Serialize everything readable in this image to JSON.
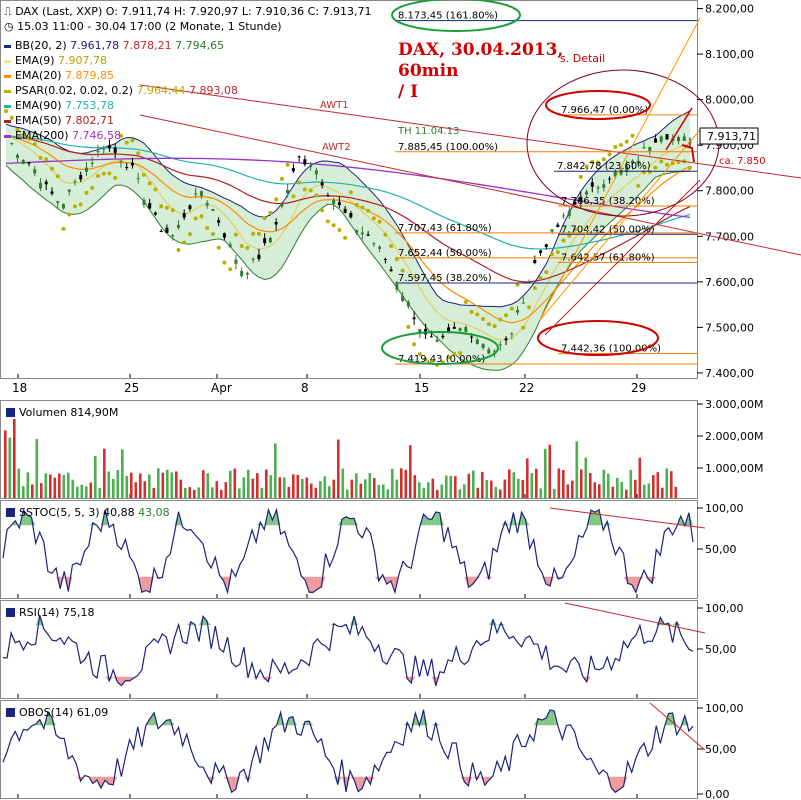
{
  "header": {
    "title": "DAX (Last, XXP)",
    "ohlc": "O: 7.911,74  H: 7.920,97  L: 7.910,36  C: 7.913,71",
    "range": "15.03 11:00 - 30.04 17:00 (2 Monate, 1 Stunde)"
  },
  "legend": [
    {
      "label": "BB(20, 2)",
      "values": "7.961,78",
      "v2": "7.878,21",
      "v3": "7.794,65",
      "color": "#1a237e"
    },
    {
      "label": "EMA(9)",
      "values": "7.907,78",
      "color": "#f0e68c"
    },
    {
      "label": "EMA(20)",
      "values": "7.879,85",
      "color": "#ff8c00"
    },
    {
      "label": "PSAR(0.02, 0.02, 0.2)",
      "values": "7.964,44",
      "v2": "7.893,08",
      "color": "#b8b000"
    },
    {
      "label": "EMA(90)",
      "values": "7.753,78",
      "color": "#20b2aa"
    },
    {
      "label": "EMA(50)",
      "values": "7.802,71",
      "color": "#b22222"
    },
    {
      "label": "EMA(200)",
      "values": "7.746,58",
      "color": "#9932cc"
    }
  ],
  "headline": [
    "DAX, 30.04.2013,",
    "60min",
    "/ I"
  ],
  "detail_label": "s. Detail",
  "annotations": {
    "awt1": "AWT1",
    "awt2": "AWT2",
    "th": "TH 11.04.13",
    "price_tag": "7.913,71",
    "ca_label": "ca. 7.850"
  },
  "chart_data": [
    {
      "type": "line",
      "name": "price",
      "x_ticks": [
        "18",
        "25",
        "Apr",
        "8",
        "15",
        "22",
        "29"
      ],
      "y_ticks": [
        "8.200,00",
        "8.100,00",
        "8.000,00",
        "7.900,00",
        "7.800,00",
        "7.700,00",
        "7.600,00",
        "7.500,00",
        "7.400,00"
      ],
      "ylim": [
        7380,
        8210
      ],
      "close": [
        7920,
        7880,
        7850,
        7800,
        7770,
        7820,
        7860,
        7900,
        7880,
        7850,
        7780,
        7720,
        7700,
        7760,
        7800,
        7750,
        7680,
        7620,
        7650,
        7700,
        7790,
        7870,
        7860,
        7800,
        7760,
        7720,
        7700,
        7660,
        7600,
        7540,
        7480,
        7460,
        7490,
        7500,
        7470,
        7450,
        7470,
        7560,
        7650,
        7700,
        7740,
        7780,
        7800,
        7830,
        7840,
        7860,
        7900,
        7930,
        7910,
        7913
      ],
      "fib_levels": [
        {
          "label": "8.173,45 (161.80%)",
          "value": 8173.45
        },
        {
          "label": "7.966,47 (0.00%)",
          "value": 7966.47
        },
        {
          "label": "7.885,45 (100.00%)",
          "value": 7885.45
        },
        {
          "label": "7.842,78 (23.60%)",
          "value": 7842.78
        },
        {
          "label": "7.766,35 (38.20%)",
          "value": 7766.35
        },
        {
          "label": "7.707,43 (61.80%)",
          "value": 7707.43
        },
        {
          "label": "7.704,42 (50.00%)",
          "value": 7704.42
        },
        {
          "label": "7.652,44 (50.00%)",
          "value": 7652.44
        },
        {
          "label": "7.642,57 (61.80%)",
          "value": 7642.57
        },
        {
          "label": "7.597,45 (38.20%)",
          "value": 7597.45
        },
        {
          "label": "7.442,36 (100.00%)",
          "value": 7442.36
        },
        {
          "label": "7.419,43 (0.00%)",
          "value": 7419.43
        }
      ]
    },
    {
      "type": "bar",
      "name": "Volumen",
      "title": "Volumen",
      "value": "814,90M",
      "y_ticks": [
        "3.000,00M",
        "2.000,00M",
        "1.000,00M"
      ]
    },
    {
      "type": "line",
      "name": "SSTOC",
      "title": "SSTOC(5, 5, 3)",
      "value": "40,88",
      "value2": "43,08",
      "y_ticks": [
        "100,00",
        "50,00"
      ]
    },
    {
      "type": "line",
      "name": "RSI",
      "title": "RSI(14)",
      "value": "75,18",
      "y_ticks": [
        "100,00",
        "50,00"
      ]
    },
    {
      "type": "line",
      "name": "OBOS",
      "title": "OBOS(14)",
      "value": "61,09",
      "y_ticks": [
        "100,00",
        "50,00",
        "0,00"
      ]
    }
  ],
  "colors": {
    "price_up": "#2e7d32",
    "price_down": "#000000",
    "bb": "#1a237e",
    "bb_fill": "#a5d6a7",
    "awt": "#c62828",
    "volume_up": "#4caf50",
    "volume_down": "#d32f2f",
    "indicator": "#1a237e",
    "indicator2": "#43a047",
    "ob_fill": "#81c784",
    "os_fill": "#ef9a9a",
    "annotation": "#d00000",
    "fib": "#1a237e",
    "ellipse_green": "#1b9e3a",
    "ellipse_red": "#d00000"
  }
}
